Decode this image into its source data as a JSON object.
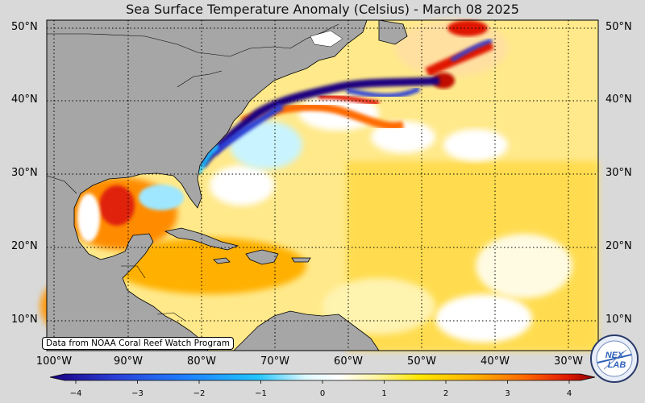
{
  "map": {
    "title": "Sea Surface Temperature Anomaly (Celsius) - March 08 2025",
    "lat_labels": [
      "50°N",
      "40°N",
      "30°N",
      "20°N",
      "10°N"
    ],
    "lon_labels": [
      "100°W",
      "90°W",
      "80°W",
      "70°W",
      "60°W",
      "50°W",
      "40°W",
      "30°W"
    ],
    "colorbar": {
      "ticks": [
        "−4",
        "−3",
        "−2",
        "−1",
        "0",
        "1",
        "2",
        "3",
        "4"
      ],
      "min": -4,
      "max": 4,
      "colors": [
        "#1a0080",
        "#2b3fd6",
        "#1e7fff",
        "#22c4ff",
        "#b9f2ff",
        "#ffffff",
        "#fff5a0",
        "#ffe600",
        "#ffb000",
        "#ff6a00",
        "#e01800",
        "#8b0000"
      ]
    },
    "credit": "Data from NOAA Coral Reef Watch Program",
    "logo_text": "NEX LAB",
    "land_color": "#a6a6a6"
  }
}
